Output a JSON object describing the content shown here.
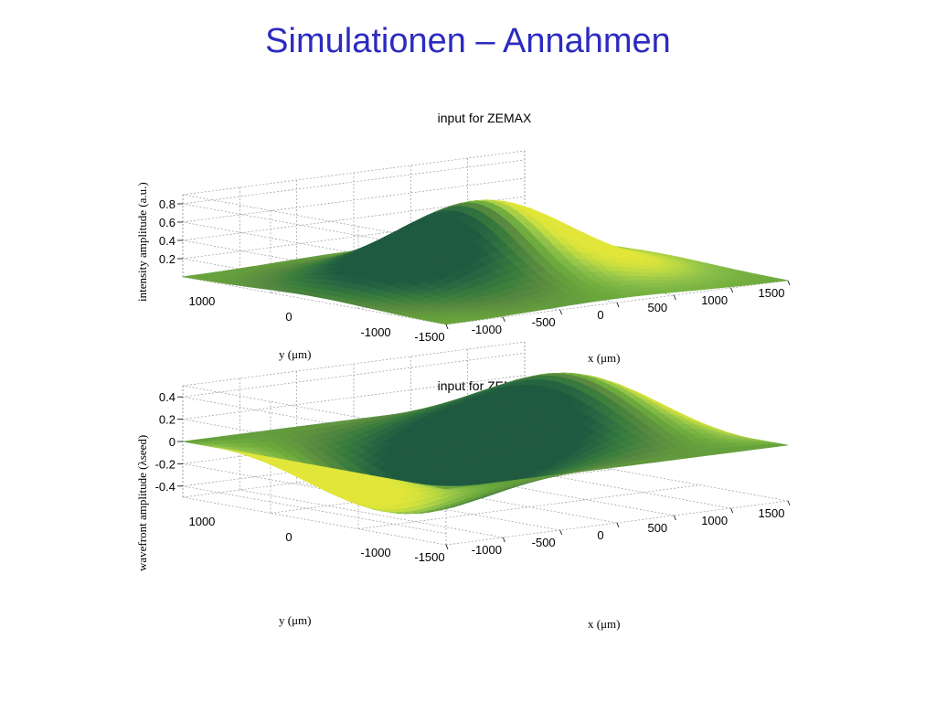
{
  "slide": {
    "title": "Simulationen – Annahmen"
  },
  "palette": [
    "#1f5a40",
    "#2a6a42",
    "#3a7d3c",
    "#5a8a40",
    "#6aa83c",
    "#8cc04a",
    "#b8d844",
    "#d7e23c",
    "#e2e63a"
  ],
  "chart_data": [
    {
      "type": "surface",
      "title": "input for ZEMAX",
      "xlabel": "x (μm)",
      "ylabel": "y (μm)",
      "zlabel": "intensity amplitude (a.u.)",
      "xticks": [
        "-1500",
        "-1000",
        "-500",
        "0",
        "500",
        "1000",
        "1500"
      ],
      "yticks": [
        "1000",
        "0",
        "-1000"
      ],
      "zticks": [
        "0.2",
        "0.4",
        "0.6",
        "0.8"
      ],
      "x_range": [
        -1500,
        1500
      ],
      "y_range": [
        -1500,
        1500
      ],
      "z_range": [
        0,
        0.9
      ],
      "function": "gaussian",
      "peak_value": 0.85,
      "grid": true
    },
    {
      "type": "surface",
      "title": "input for ZEMAX",
      "xlabel": "x (μm)",
      "ylabel": "y (μm)",
      "zlabel": "wavefront amplitude (λseed)",
      "xticks": [
        "-1500",
        "-1000",
        "-500",
        "0",
        "500",
        "1000",
        "1500"
      ],
      "yticks": [
        "1000",
        "0",
        "-1000"
      ],
      "zticks": [
        "0.4",
        "0.2",
        "0",
        "-0.2",
        "-0.4"
      ],
      "x_range": [
        -1500,
        1500
      ],
      "y_range": [
        -1500,
        1500
      ],
      "z_range": [
        -0.5,
        0.5
      ],
      "function": "tilted-sine",
      "amplitude": 0.45,
      "grid": true
    }
  ]
}
